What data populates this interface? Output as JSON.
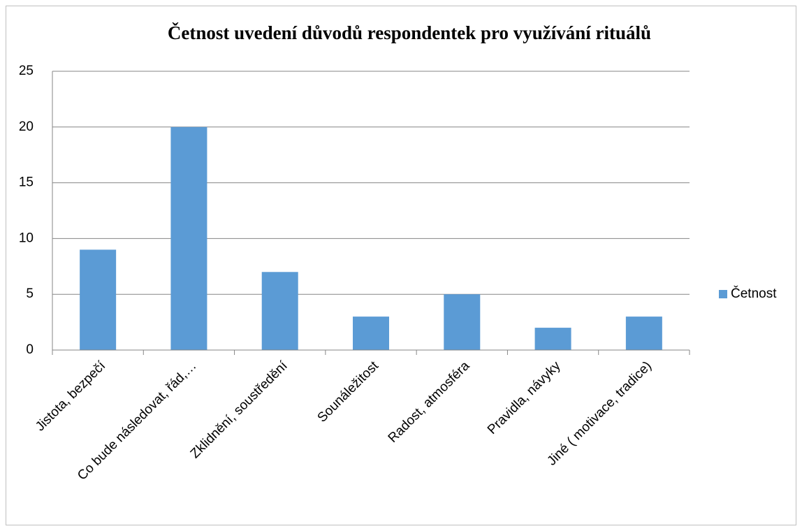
{
  "chart_data": {
    "type": "bar",
    "title": "Četnost uvedení důvodů respondentek  pro využívání rituálů",
    "categories": [
      "Jistota, bezpečí",
      "Co bude následovat,  řád,…",
      "Zklidnění, soustředění",
      "Sounáležitost",
      "Radost, atmosféra",
      "Pravidla, návyky",
      "Jiné ( motivace, tradice)"
    ],
    "series": [
      {
        "name": "Četnost",
        "color": "#5b9bd5",
        "values": [
          9,
          20,
          7,
          3,
          5,
          2,
          3
        ]
      }
    ],
    "ylim": [
      0,
      25
    ],
    "yticks": [
      0,
      5,
      10,
      15,
      20,
      25
    ],
    "grid": true,
    "legend": "right"
  }
}
